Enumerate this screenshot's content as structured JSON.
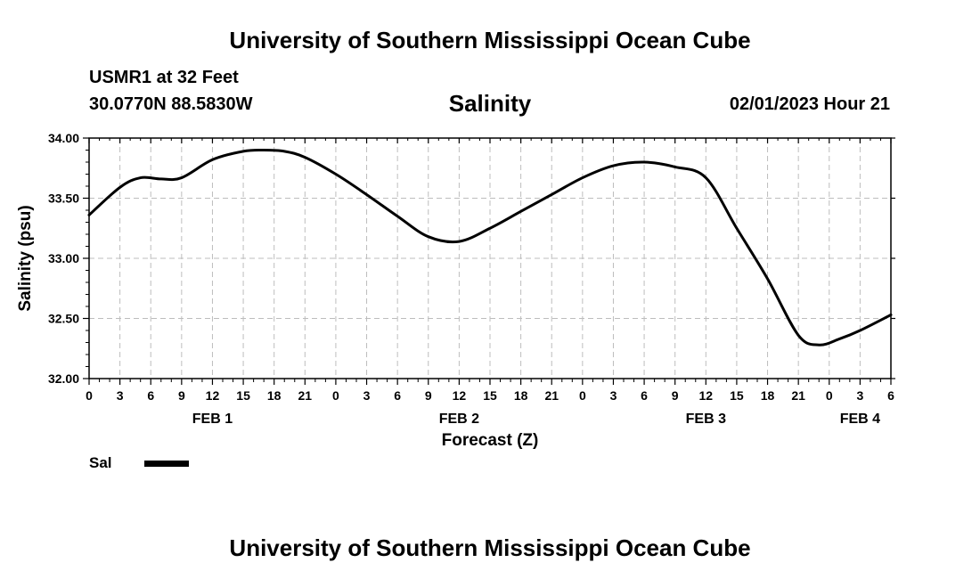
{
  "header": {
    "title_top": "University of Southern Mississippi Ocean Cube",
    "station": "USMR1 at 32 Feet",
    "coords": "30.0770N  88.5830W",
    "stamp": "02/01/2023 Hour 21",
    "title_bottom": "University of Southern Mississippi Ocean Cube"
  },
  "legend": {
    "label": "Sal",
    "color": "#000000"
  },
  "chart_data": {
    "type": "line",
    "title": "Salinity",
    "xlabel": "Forecast (Z)",
    "ylabel": "Salinity (psu)",
    "ylim": [
      32.0,
      34.0
    ],
    "xlim": [
      0,
      78
    ],
    "x_unit": "hours since FEB 1 00Z",
    "y_ticks": [
      "32.00",
      "32.50",
      "33.00",
      "33.50",
      "34.00"
    ],
    "x_tick_labels": [
      "0",
      "3",
      "6",
      "9",
      "12",
      "15",
      "18",
      "21",
      "0",
      "3",
      "6",
      "9",
      "12",
      "15",
      "18",
      "21",
      "0",
      "3",
      "6",
      "9",
      "12",
      "15",
      "18",
      "21",
      "0",
      "3",
      "6"
    ],
    "day_labels": [
      {
        "label": "FEB 1",
        "hour": 12
      },
      {
        "label": "FEB 2",
        "hour": 36
      },
      {
        "label": "FEB 3",
        "hour": 60
      },
      {
        "label": "FEB 4",
        "hour": 75
      }
    ],
    "grid": true,
    "series": [
      {
        "name": "Sal",
        "color": "#000000",
        "x": [
          0,
          3,
          5,
          7,
          9,
          12,
          15,
          17,
          19,
          21,
          24,
          27,
          30,
          33,
          36,
          39,
          42,
          45,
          48,
          51,
          54,
          57,
          60,
          63,
          66,
          69,
          71,
          73,
          75,
          78
        ],
        "y": [
          33.36,
          33.59,
          33.67,
          33.66,
          33.67,
          33.82,
          33.89,
          33.9,
          33.89,
          33.84,
          33.7,
          33.53,
          33.35,
          33.18,
          33.14,
          33.25,
          33.39,
          33.53,
          33.67,
          33.77,
          33.8,
          33.76,
          33.67,
          33.25,
          32.83,
          32.36,
          32.28,
          32.33,
          32.4,
          32.53
        ]
      }
    ]
  }
}
